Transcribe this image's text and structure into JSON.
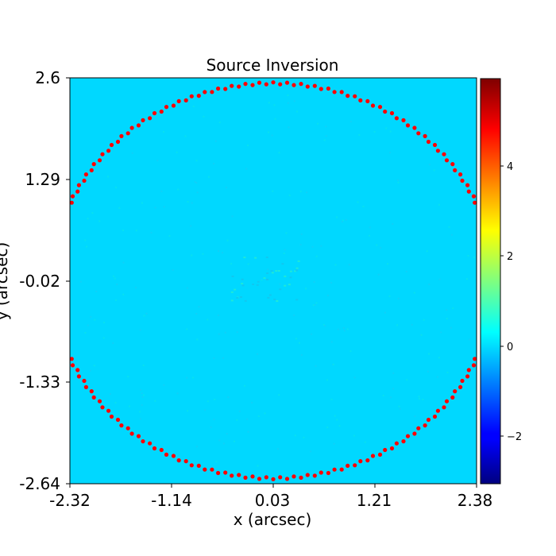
{
  "chart_data": {
    "type": "heatmap",
    "title": "Source Inversion",
    "xlabel": "x (arcsec)",
    "ylabel": "y (arcsec)",
    "xlim": [
      -2.32,
      2.38
    ],
    "ylim": [
      -2.64,
      2.6
    ],
    "x_ticks": [
      "-2.32",
      "-1.14",
      "0.03",
      "1.21",
      "2.38"
    ],
    "y_ticks": [
      "2.6",
      "1.29",
      "-0.02",
      "-1.33",
      "-2.64"
    ],
    "colorbar": {
      "colormap": "jet",
      "range": [
        -3.1,
        5.9
      ],
      "ticks": [
        "−2",
        "0",
        "2",
        "4"
      ],
      "tick_values": [
        -2,
        0,
        2,
        4
      ]
    },
    "background_value": 0.35,
    "border": {
      "color": "#ff0000",
      "shape": "circle",
      "center": [
        0.03,
        -0.02
      ],
      "radius": 2.55
    },
    "colors": {
      "background": "#00d8ff",
      "border_red": "#ff0000"
    }
  }
}
